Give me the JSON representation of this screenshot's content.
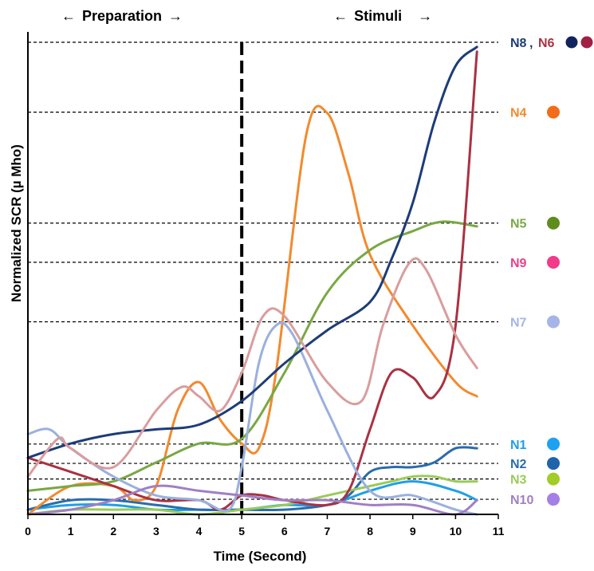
{
  "chart_data": {
    "type": "line",
    "xlabel": "Time (Second)",
    "ylabel": "Normalized  SCR (µ Mho)",
    "xlim": [
      0,
      11
    ],
    "xticks": [
      "0",
      "1",
      "2",
      "3",
      "4",
      "5",
      "6",
      "7",
      "8",
      "9",
      "10",
      "11"
    ],
    "ylim": [
      0,
      1
    ],
    "phases": [
      {
        "label": "Preparation",
        "arrow_left": "←",
        "arrow_right": "→"
      },
      {
        "label": "Stimuli",
        "arrow_left": "←",
        "arrow_right": "→"
      }
    ],
    "stimulus_onset": 5,
    "grid": false,
    "legend_placement": "right",
    "series": [
      {
        "name": "N1",
        "color": "#1f9fe6",
        "level": 0.149,
        "points": [
          [
            0,
            0.01
          ],
          [
            1,
            0.02
          ],
          [
            2,
            0.02
          ],
          [
            3,
            0.01
          ],
          [
            4,
            0.01
          ],
          [
            5,
            0.01
          ],
          [
            6,
            0.02
          ],
          [
            7,
            0.02
          ],
          [
            8,
            0.05
          ],
          [
            9,
            0.07
          ],
          [
            10,
            0.05
          ],
          [
            10.5,
            0.03
          ]
        ]
      },
      {
        "name": "N2",
        "color": "#2a6cab",
        "level": 0.108,
        "points": [
          [
            0,
            0.01
          ],
          [
            1,
            0.03
          ],
          [
            2,
            0.03
          ],
          [
            3,
            0.02
          ],
          [
            4,
            0.01
          ],
          [
            5,
            0.01
          ],
          [
            6,
            0.01
          ],
          [
            7,
            0.02
          ],
          [
            7.5,
            0.04
          ],
          [
            8,
            0.09
          ],
          [
            8.5,
            0.1
          ],
          [
            9,
            0.1
          ],
          [
            9.5,
            0.11
          ],
          [
            10,
            0.14
          ],
          [
            10.5,
            0.14
          ]
        ]
      },
      {
        "name": "N3",
        "color": "#9acb57",
        "level": 0.075,
        "points": [
          [
            0,
            0.0
          ],
          [
            1,
            0.01
          ],
          [
            2,
            0.01
          ],
          [
            3,
            0.01
          ],
          [
            4,
            0.0
          ],
          [
            5,
            0.01
          ],
          [
            6,
            0.02
          ],
          [
            7,
            0.04
          ],
          [
            8,
            0.06
          ],
          [
            8.5,
            0.07
          ],
          [
            9,
            0.08
          ],
          [
            9.5,
            0.08
          ],
          [
            10,
            0.07
          ],
          [
            10.5,
            0.07
          ]
        ]
      },
      {
        "name": "N4",
        "color": "#f28a2e",
        "level": 0.852,
        "points": [
          [
            0,
            0.0
          ],
          [
            1,
            0.06
          ],
          [
            2,
            0.06
          ],
          [
            2.5,
            0.03
          ],
          [
            3,
            0.06
          ],
          [
            3.5,
            0.22
          ],
          [
            4,
            0.28
          ],
          [
            4.5,
            0.2
          ],
          [
            5,
            0.15
          ],
          [
            5.4,
            0.14
          ],
          [
            5.8,
            0.3
          ],
          [
            6.5,
            0.8
          ],
          [
            7,
            0.85
          ],
          [
            7.5,
            0.72
          ],
          [
            8,
            0.55
          ],
          [
            9,
            0.4
          ],
          [
            10,
            0.28
          ],
          [
            10.5,
            0.25
          ]
        ]
      },
      {
        "name": "N5",
        "color": "#78a844",
        "level": 0.617,
        "points": [
          [
            0,
            0.05
          ],
          [
            1,
            0.06
          ],
          [
            2,
            0.07
          ],
          [
            3,
            0.11
          ],
          [
            4,
            0.15
          ],
          [
            5,
            0.16
          ],
          [
            6,
            0.3
          ],
          [
            7,
            0.47
          ],
          [
            8,
            0.56
          ],
          [
            9,
            0.6
          ],
          [
            9.7,
            0.62
          ],
          [
            10.5,
            0.61
          ]
        ]
      },
      {
        "name": "N6",
        "color": "#a93243",
        "level": 1.0,
        "points": [
          [
            0,
            0.12
          ],
          [
            1,
            0.09
          ],
          [
            2,
            0.06
          ],
          [
            3,
            0.03
          ],
          [
            4,
            0.03
          ],
          [
            4.5,
            0.01
          ],
          [
            5,
            0.04
          ],
          [
            5.5,
            0.04
          ],
          [
            6,
            0.03
          ],
          [
            7,
            0.02
          ],
          [
            7.5,
            0.05
          ],
          [
            8,
            0.18
          ],
          [
            8.5,
            0.3
          ],
          [
            9,
            0.29
          ],
          [
            9.5,
            0.25
          ],
          [
            10,
            0.4
          ],
          [
            10.5,
            0.98
          ]
        ]
      },
      {
        "name": "N7",
        "color": "#9ab0de",
        "level": 0.408,
        "points": [
          [
            0,
            0.17
          ],
          [
            0.5,
            0.18
          ],
          [
            1,
            0.14
          ],
          [
            2,
            0.08
          ],
          [
            3,
            0.04
          ],
          [
            4,
            0.03
          ],
          [
            4.7,
            0.01
          ],
          [
            5,
            0.1
          ],
          [
            5.4,
            0.32
          ],
          [
            5.8,
            0.4
          ],
          [
            6.2,
            0.38
          ],
          [
            7,
            0.22
          ],
          [
            8,
            0.05
          ],
          [
            9,
            0.04
          ],
          [
            10,
            0.01
          ],
          [
            10.5,
            0.0
          ]
        ]
      },
      {
        "name": "N8",
        "color": "#1d3c78",
        "level": 1.0,
        "points": [
          [
            0,
            0.12
          ],
          [
            1,
            0.15
          ],
          [
            2,
            0.17
          ],
          [
            3,
            0.18
          ],
          [
            4,
            0.19
          ],
          [
            5,
            0.24
          ],
          [
            6,
            0.32
          ],
          [
            7,
            0.39
          ],
          [
            8,
            0.45
          ],
          [
            8.5,
            0.54
          ],
          [
            9,
            0.66
          ],
          [
            9.5,
            0.83
          ],
          [
            10,
            0.95
          ],
          [
            10.5,
            0.99
          ]
        ]
      },
      {
        "name": "N9",
        "color": "#d99d9e",
        "level": 0.534,
        "points": [
          [
            0,
            0.08
          ],
          [
            0.7,
            0.16
          ],
          [
            1,
            0.14
          ],
          [
            2,
            0.1
          ],
          [
            3,
            0.22
          ],
          [
            3.6,
            0.27
          ],
          [
            4,
            0.25
          ],
          [
            4.5,
            0.22
          ],
          [
            5,
            0.3
          ],
          [
            5.5,
            0.42
          ],
          [
            6,
            0.42
          ],
          [
            7,
            0.28
          ],
          [
            7.8,
            0.24
          ],
          [
            8.3,
            0.4
          ],
          [
            8.9,
            0.53
          ],
          [
            9.3,
            0.52
          ],
          [
            10,
            0.38
          ],
          [
            10.5,
            0.31
          ]
        ]
      },
      {
        "name": "N10",
        "color": "#a07fc4",
        "level": 0.032,
        "points": [
          [
            0,
            0.0
          ],
          [
            1,
            0.01
          ],
          [
            2,
            0.03
          ],
          [
            3,
            0.06
          ],
          [
            4,
            0.05
          ],
          [
            5,
            0.04
          ],
          [
            6,
            0.03
          ],
          [
            7,
            0.03
          ],
          [
            8,
            0.02
          ],
          [
            9,
            0.02
          ],
          [
            10,
            0.0
          ],
          [
            10.5,
            0.03
          ]
        ]
      }
    ],
    "guide_labels": [
      {
        "text": "N8",
        "color": "#1d3c78",
        "level": 1.0
      },
      {
        "text": "N4",
        "color": "#f28a2e",
        "level": 0.852
      },
      {
        "text": "N5",
        "color": "#78a844",
        "level": 0.617
      },
      {
        "text": "N9",
        "color": "#ea3f8c",
        "level": 0.534
      },
      {
        "text": "N7",
        "color": "#a7b4e8",
        "level": 0.408
      },
      {
        "text": "N1",
        "color": "#1f9fe6",
        "level": 0.149
      },
      {
        "text": "N2",
        "color": "#2a6cab",
        "level": 0.108
      },
      {
        "text": "N3",
        "color": "#9acb57",
        "level": 0.075
      },
      {
        "text": "N10",
        "color": "#a07fc4",
        "level": 0.032
      }
    ],
    "n6_label": {
      "text": "N6",
      "color": "#a93243",
      "separator": ","
    },
    "dot_colors": {
      "N8": "#10235e",
      "N6": "#a02045",
      "N4": "#f26c1a",
      "N5": "#5f8c1f",
      "N9": "#f23a8a",
      "N7": "#a7b4e8",
      "N1": "#1ea1f0",
      "N2": "#2063ad",
      "N3": "#a3cc27",
      "N10": "#a57fe8"
    }
  }
}
